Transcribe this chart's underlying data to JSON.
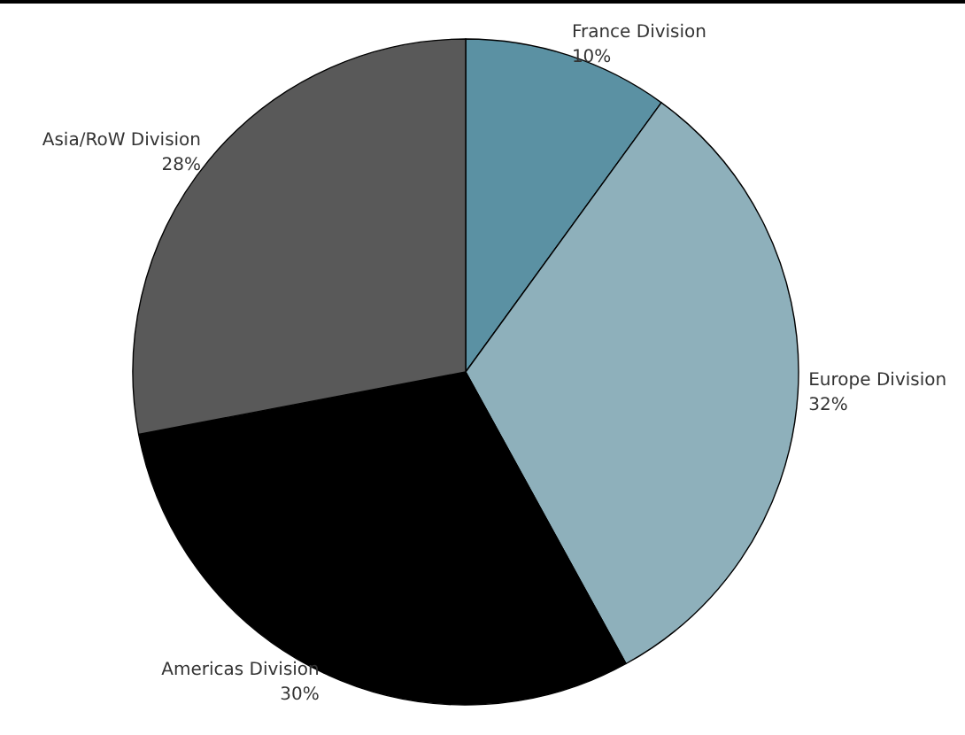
{
  "chart_data": {
    "type": "pie",
    "categories": [
      "France Division",
      "Europe Division",
      "Americas Division",
      "Asia/RoW Division"
    ],
    "values": [
      10,
      32,
      30,
      28
    ],
    "colors": [
      "#5b91a3",
      "#8eb0bb",
      "#000000",
      "#595959"
    ],
    "value_labels": [
      "10%",
      "32%",
      "30%",
      "28%"
    ]
  }
}
